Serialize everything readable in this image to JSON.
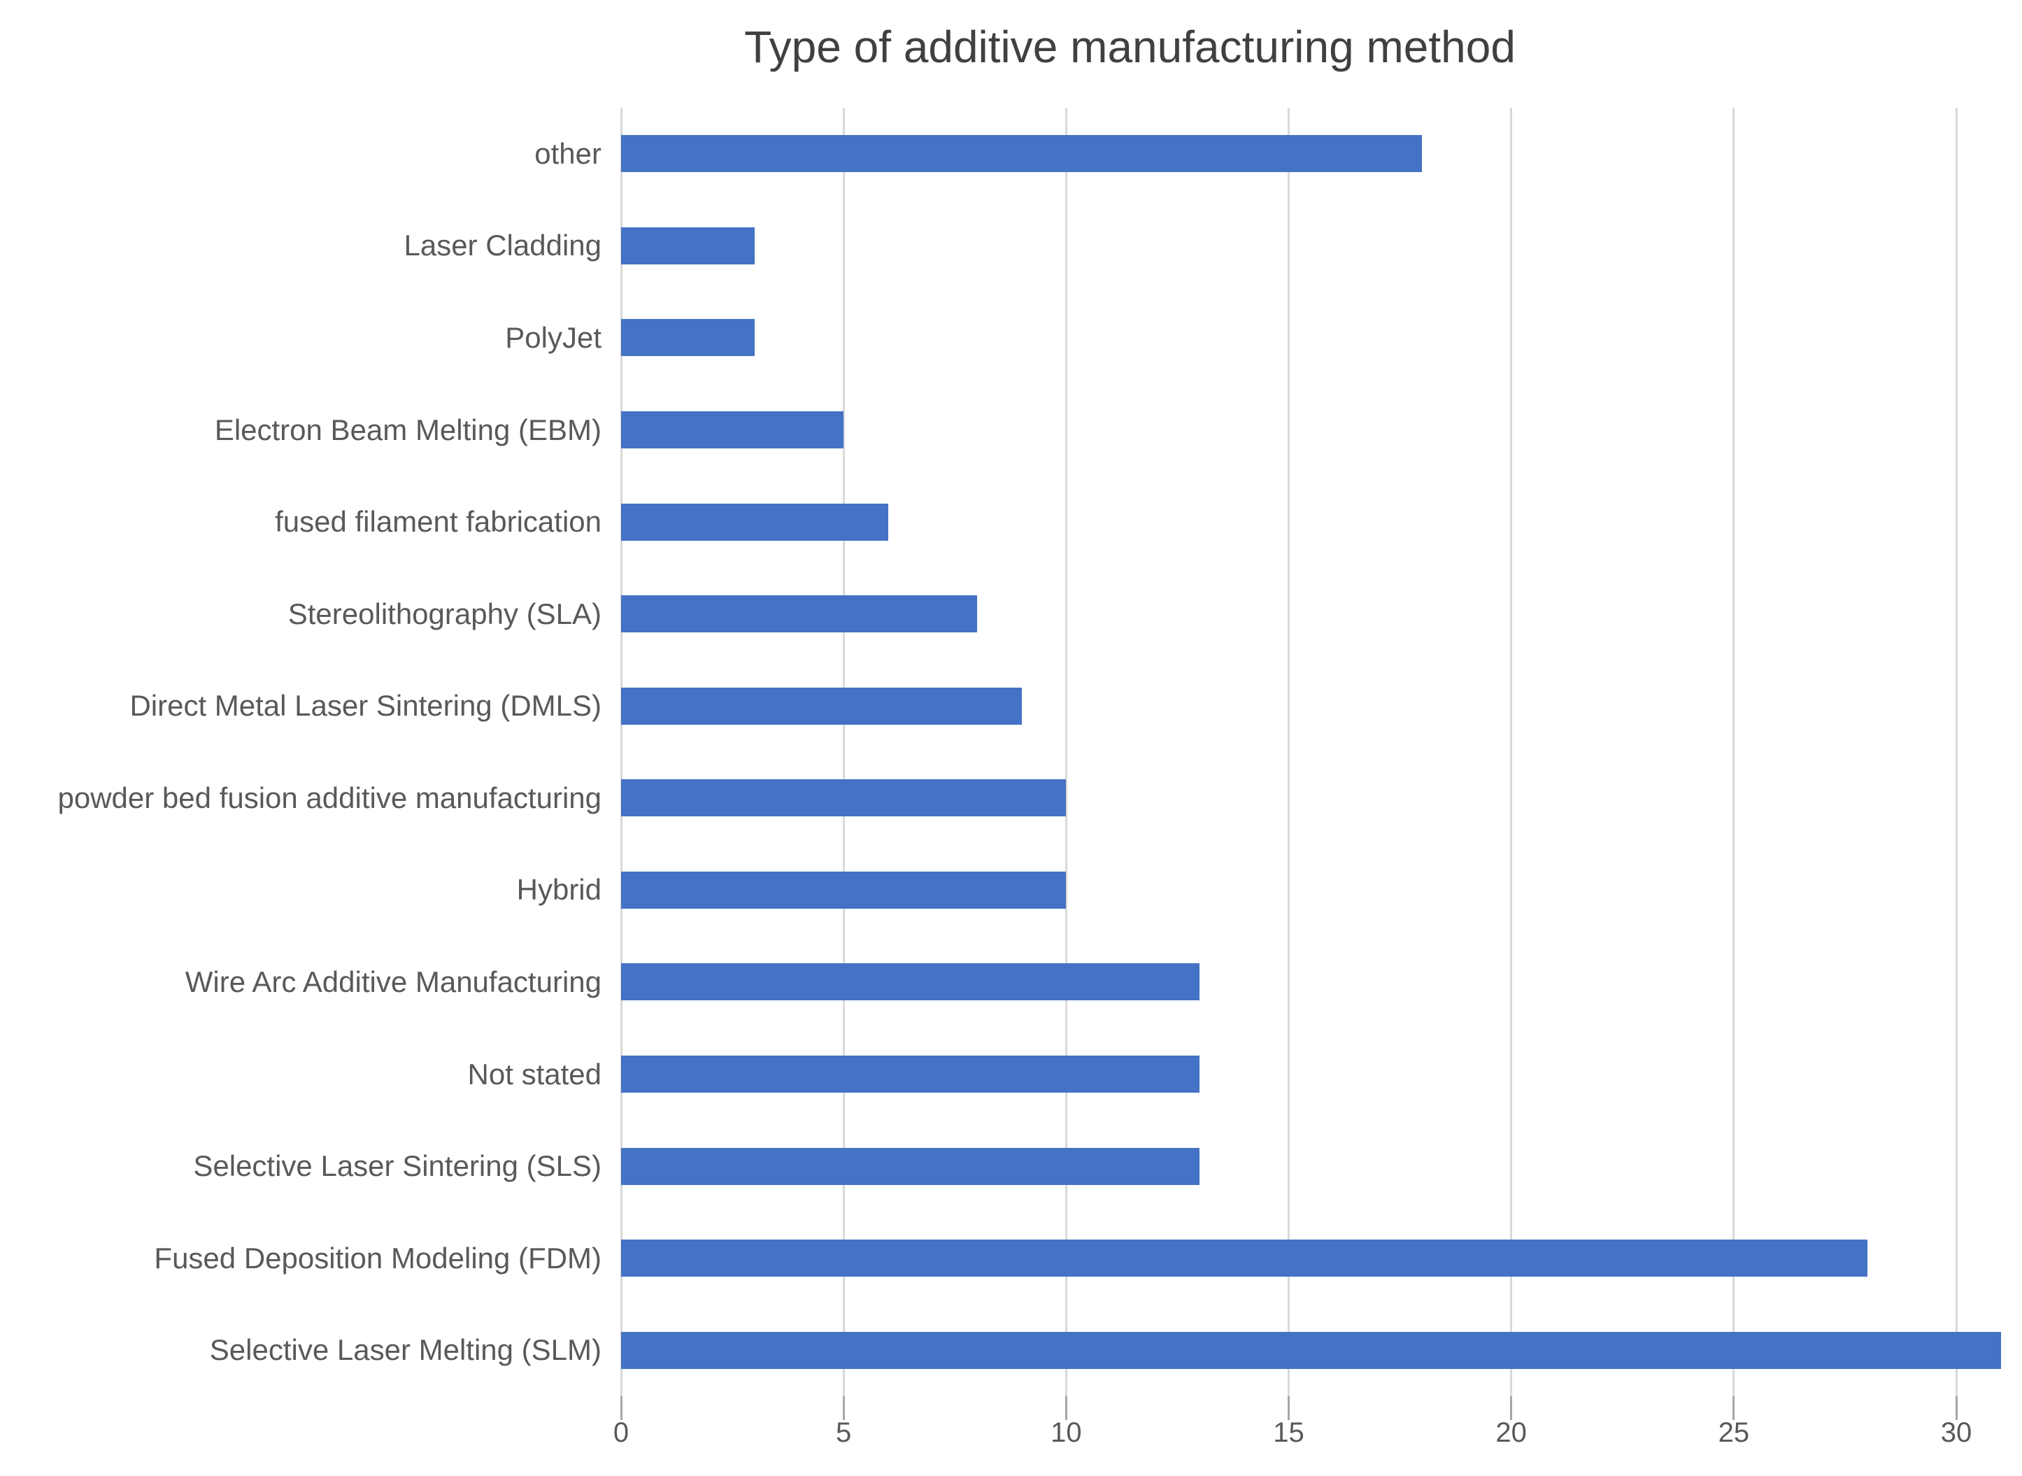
{
  "chart_data": {
    "type": "bar",
    "orientation": "horizontal",
    "title": "Type of additive manufacturing method",
    "categories": [
      "other",
      "Laser Cladding",
      "PolyJet",
      "Electron Beam Melting (EBM)",
      "fused filament fabrication",
      "Stereolithography (SLA)",
      "Direct Metal Laser Sintering (DMLS)",
      "powder bed fusion additive manufacturing",
      "Hybrid",
      "Wire Arc Additive Manufacturing",
      "Not stated",
      "Selective Laser Sintering (SLS)",
      "Fused Deposition Modeling (FDM)",
      "Selective Laser Melting (SLM)"
    ],
    "values": [
      18,
      3,
      3,
      5,
      6,
      8,
      9,
      10,
      10,
      13,
      13,
      13,
      28,
      31
    ],
    "x_ticks": [
      0,
      5,
      10,
      15,
      20,
      25,
      30
    ],
    "xlim": [
      0,
      31
    ],
    "xlabel": "",
    "ylabel": "",
    "legend": "none",
    "grid": "vertical-major",
    "data_labels": "none",
    "bar_color": "#4472C4",
    "gridline_color": "#D9D9D9",
    "tick_mark_color": "#A6A6A6",
    "axis_label_color": "#595959",
    "title_color": "#404040",
    "background_color": "#FFFFFF"
  }
}
